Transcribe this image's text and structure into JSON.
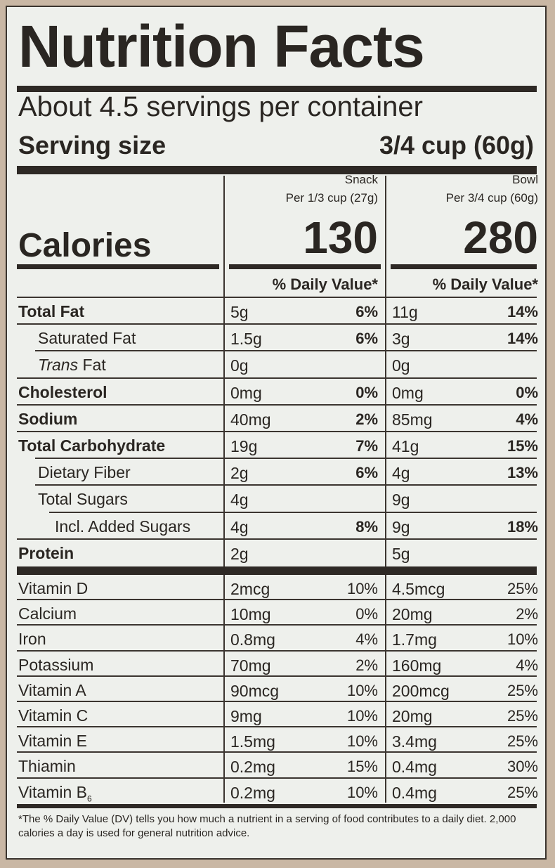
{
  "header": {
    "title": "Nutrition Facts",
    "servings_per_container": "About 4.5 servings per container",
    "serving_size_label": "Serving size",
    "serving_size_value": "3/4 cup (60g)"
  },
  "columns": [
    {
      "name": "Snack",
      "per": "Per 1/3 cup (27g)",
      "calories": "130",
      "dv_header": "% Daily Value*"
    },
    {
      "name": "Bowl",
      "per": "Per 3/4 cup (60g)",
      "calories": "280",
      "dv_header": "% Daily Value*"
    }
  ],
  "calories_label": "Calories",
  "nutrients": [
    {
      "name": "Total Fat",
      "snack_amt": "5g",
      "snack_pct": "6%",
      "bowl_amt": "11g",
      "bowl_pct": "14%"
    },
    {
      "name": "Saturated Fat",
      "snack_amt": "1.5g",
      "snack_pct": "6%",
      "bowl_amt": "3g",
      "bowl_pct": "14%"
    },
    {
      "name_italic": "Trans",
      "name": " Fat",
      "snack_amt": "0g",
      "snack_pct": "",
      "bowl_amt": "0g",
      "bowl_pct": ""
    },
    {
      "name": "Cholesterol",
      "snack_amt": "0mg",
      "snack_pct": "0%",
      "bowl_amt": "0mg",
      "bowl_pct": "0%"
    },
    {
      "name": "Sodium",
      "snack_amt": "40mg",
      "snack_pct": "2%",
      "bowl_amt": "85mg",
      "bowl_pct": "4%"
    },
    {
      "name": "Total Carbohydrate",
      "snack_amt": "19g",
      "snack_pct": "7%",
      "bowl_amt": "41g",
      "bowl_pct": "15%"
    },
    {
      "name": "Dietary Fiber",
      "snack_amt": "2g",
      "snack_pct": "6%",
      "bowl_amt": "4g",
      "bowl_pct": "13%"
    },
    {
      "name": "Total Sugars",
      "snack_amt": "4g",
      "snack_pct": "",
      "bowl_amt": "9g",
      "bowl_pct": ""
    },
    {
      "name": "Incl. Added Sugars",
      "snack_amt": "4g",
      "snack_pct": "8%",
      "bowl_amt": "9g",
      "bowl_pct": "18%"
    },
    {
      "name": "Protein",
      "snack_amt": "2g",
      "snack_pct": "",
      "bowl_amt": "5g",
      "bowl_pct": ""
    }
  ],
  "vitamins": [
    {
      "name": "Vitamin D",
      "snack_amt": "2mcg",
      "snack_pct": "10%",
      "bowl_amt": "4.5mcg",
      "bowl_pct": "25%"
    },
    {
      "name": "Calcium",
      "snack_amt": "10mg",
      "snack_pct": "0%",
      "bowl_amt": "20mg",
      "bowl_pct": "2%"
    },
    {
      "name": "Iron",
      "snack_amt": "0.8mg",
      "snack_pct": "4%",
      "bowl_amt": "1.7mg",
      "bowl_pct": "10%"
    },
    {
      "name": "Potassium",
      "snack_amt": "70mg",
      "snack_pct": "2%",
      "bowl_amt": "160mg",
      "bowl_pct": "4%"
    },
    {
      "name": "Vitamin A",
      "snack_amt": "90mcg",
      "snack_pct": "10%",
      "bowl_amt": "200mcg",
      "bowl_pct": "25%"
    },
    {
      "name": "Vitamin C",
      "snack_amt": "9mg",
      "snack_pct": "10%",
      "bowl_amt": "20mg",
      "bowl_pct": "25%"
    },
    {
      "name": "Vitamin E",
      "snack_amt": "1.5mg",
      "snack_pct": "10%",
      "bowl_amt": "3.4mg",
      "bowl_pct": "25%"
    },
    {
      "name": "Thiamin",
      "snack_amt": "0.2mg",
      "snack_pct": "15%",
      "bowl_amt": "0.4mg",
      "bowl_pct": "30%"
    },
    {
      "name": "Vitamin B",
      "name_sub": "6",
      "snack_amt": "0.2mg",
      "snack_pct": "10%",
      "bowl_amt": "0.4mg",
      "bowl_pct": "25%"
    }
  ],
  "footnote": "*The % Daily Value (DV) tells you how much a nutrient in a serving of food contributes to a daily diet. 2,000 calories a day is used for general nutrition advice."
}
